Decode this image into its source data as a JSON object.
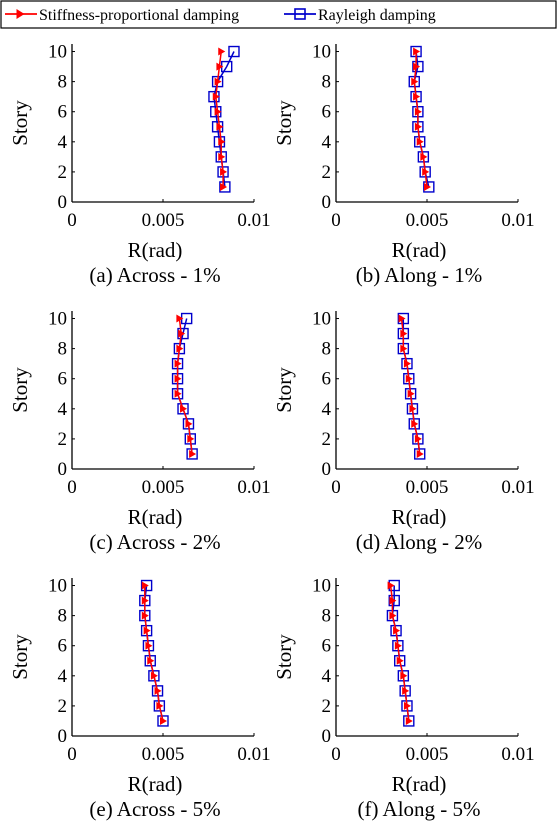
{
  "legend": {
    "stiffness_label": "Stiffness-proportional damping",
    "rayleigh_label": "Rayleigh damping",
    "stiffness_color": "#ff0000",
    "rayleigh_color": "#0000cc",
    "placement": "top"
  },
  "chart_data": [
    {
      "type": "line",
      "caption": "(a) Across - 1%",
      "xlabel": "R(rad)",
      "ylabel": "Story",
      "xlim": [
        0,
        0.01
      ],
      "ylim": [
        0,
        10.5
      ],
      "xticks": [
        "0",
        "0.005",
        "0.01"
      ],
      "yticks": [
        "0",
        "2",
        "4",
        "6",
        "8",
        "10"
      ],
      "grid": false,
      "series": [
        {
          "name": "Stiffness-proportional damping",
          "marker": "triangle-right",
          "x": [
            0.0083,
            0.0083,
            0.0082,
            0.0082,
            0.0081,
            0.008,
            0.0079,
            0.008,
            0.0081,
            0.0082
          ],
          "y": [
            1,
            2,
            3,
            4,
            5,
            6,
            7,
            8,
            9,
            10
          ]
        },
        {
          "name": "Rayleigh damping",
          "marker": "square",
          "x": [
            0.0084,
            0.0083,
            0.0082,
            0.0081,
            0.008,
            0.0079,
            0.0078,
            0.008,
            0.0085,
            0.0089
          ],
          "y": [
            1,
            2,
            3,
            4,
            5,
            6,
            7,
            8,
            9,
            10
          ]
        }
      ]
    },
    {
      "type": "line",
      "caption": "(b) Along - 1%",
      "xlabel": "R(rad)",
      "ylabel": "Story",
      "xlim": [
        0,
        0.01
      ],
      "ylim": [
        0,
        10.5
      ],
      "xticks": [
        "0",
        "0.005",
        "0.01"
      ],
      "yticks": [
        "0",
        "2",
        "4",
        "6",
        "8",
        "10"
      ],
      "grid": false,
      "series": [
        {
          "name": "Stiffness-proportional damping",
          "marker": "triangle-right",
          "x": [
            0.005,
            0.0049,
            0.0048,
            0.0046,
            0.0045,
            0.0045,
            0.0044,
            0.0043,
            0.0044,
            0.0044
          ],
          "y": [
            1,
            2,
            3,
            4,
            5,
            6,
            7,
            8,
            9,
            10
          ]
        },
        {
          "name": "Rayleigh damping",
          "marker": "square",
          "x": [
            0.0051,
            0.0049,
            0.0048,
            0.0046,
            0.0045,
            0.0045,
            0.0044,
            0.0043,
            0.0045,
            0.0044
          ],
          "y": [
            1,
            2,
            3,
            4,
            5,
            6,
            7,
            8,
            9,
            10
          ]
        }
      ]
    },
    {
      "type": "line",
      "caption": "(c) Across - 2%",
      "xlabel": "R(rad)",
      "ylabel": "Story",
      "xlim": [
        0,
        0.01
      ],
      "ylim": [
        0,
        10.5
      ],
      "xticks": [
        "0",
        "0.005",
        "0.01"
      ],
      "yticks": [
        "0",
        "2",
        "4",
        "6",
        "8",
        "10"
      ],
      "grid": false,
      "series": [
        {
          "name": "Stiffness-proportional damping",
          "marker": "triangle-right",
          "x": [
            0.0066,
            0.0065,
            0.0064,
            0.0061,
            0.0058,
            0.0058,
            0.0058,
            0.0059,
            0.006,
            0.0059
          ],
          "y": [
            1,
            2,
            3,
            4,
            5,
            6,
            7,
            8,
            9,
            10
          ]
        },
        {
          "name": "Rayleigh damping",
          "marker": "square",
          "x": [
            0.0066,
            0.0065,
            0.0064,
            0.0061,
            0.0058,
            0.0058,
            0.0058,
            0.0059,
            0.0061,
            0.0063
          ],
          "y": [
            1,
            2,
            3,
            4,
            5,
            6,
            7,
            8,
            9,
            10
          ]
        }
      ]
    },
    {
      "type": "line",
      "caption": "(d) Along - 2%",
      "xlabel": "R(rad)",
      "ylabel": "Story",
      "xlim": [
        0,
        0.01
      ],
      "ylim": [
        0,
        10.5
      ],
      "xticks": [
        "0",
        "0.005",
        "0.01"
      ],
      "yticks": [
        "0",
        "2",
        "4",
        "6",
        "8",
        "10"
      ],
      "grid": false,
      "series": [
        {
          "name": "Stiffness-proportional damping",
          "marker": "triangle-right",
          "x": [
            0.0046,
            0.0045,
            0.0043,
            0.0042,
            0.0041,
            0.004,
            0.0039,
            0.0037,
            0.0037,
            0.0036
          ],
          "y": [
            1,
            2,
            3,
            4,
            5,
            6,
            7,
            8,
            9,
            10
          ]
        },
        {
          "name": "Rayleigh damping",
          "marker": "square",
          "x": [
            0.0046,
            0.0045,
            0.0043,
            0.0042,
            0.0041,
            0.004,
            0.0039,
            0.0037,
            0.0037,
            0.0037
          ],
          "y": [
            1,
            2,
            3,
            4,
            5,
            6,
            7,
            8,
            9,
            10
          ]
        }
      ]
    },
    {
      "type": "line",
      "caption": "(e) Across - 5%",
      "xlabel": "R(rad)",
      "ylabel": "Story",
      "xlim": [
        0,
        0.01
      ],
      "ylim": [
        0,
        10.5
      ],
      "xticks": [
        "0",
        "0.005",
        "0.01"
      ],
      "yticks": [
        "0",
        "2",
        "4",
        "6",
        "8",
        "10"
      ],
      "grid": false,
      "series": [
        {
          "name": "Stiffness-proportional damping",
          "marker": "triangle-right",
          "x": [
            0.005,
            0.0048,
            0.0047,
            0.0045,
            0.0043,
            0.0042,
            0.0041,
            0.004,
            0.004,
            0.004
          ],
          "y": [
            1,
            2,
            3,
            4,
            5,
            6,
            7,
            8,
            9,
            10
          ]
        },
        {
          "name": "Rayleigh damping",
          "marker": "square",
          "x": [
            0.005,
            0.0048,
            0.0047,
            0.0045,
            0.0043,
            0.0042,
            0.0041,
            0.004,
            0.004,
            0.0041
          ],
          "y": [
            1,
            2,
            3,
            4,
            5,
            6,
            7,
            8,
            9,
            10
          ]
        }
      ]
    },
    {
      "type": "line",
      "caption": "(f) Along - 5%",
      "xlabel": "R(rad)",
      "ylabel": "Story",
      "xlim": [
        0,
        0.01
      ],
      "ylim": [
        0,
        10.5
      ],
      "xticks": [
        "0",
        "0.005",
        "0.01"
      ],
      "yticks": [
        "0",
        "2",
        "4",
        "6",
        "8",
        "10"
      ],
      "grid": false,
      "series": [
        {
          "name": "Stiffness-proportional damping",
          "marker": "triangle-right",
          "x": [
            0.004,
            0.0039,
            0.0038,
            0.0037,
            0.0035,
            0.0034,
            0.0033,
            0.0031,
            0.0031,
            0.003
          ],
          "y": [
            1,
            2,
            3,
            4,
            5,
            6,
            7,
            8,
            9,
            10
          ]
        },
        {
          "name": "Rayleigh damping",
          "marker": "square",
          "x": [
            0.004,
            0.0039,
            0.0038,
            0.0037,
            0.0035,
            0.0034,
            0.0033,
            0.0031,
            0.0032,
            0.0032
          ],
          "y": [
            1,
            2,
            3,
            4,
            5,
            6,
            7,
            8,
            9,
            10
          ]
        }
      ]
    }
  ]
}
